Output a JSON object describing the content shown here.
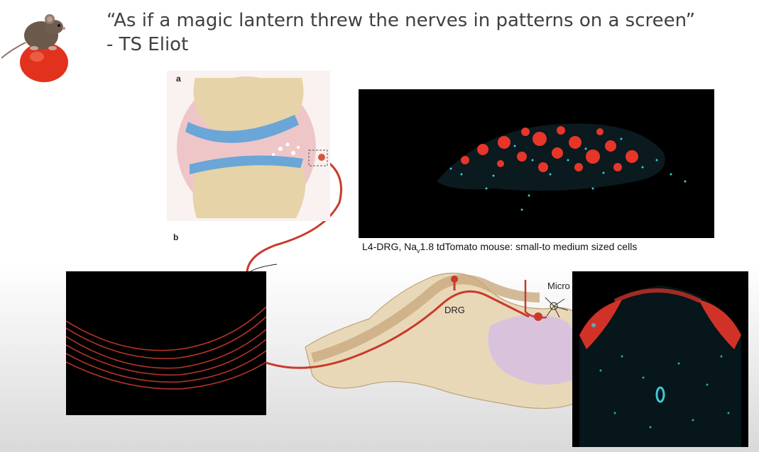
{
  "slide": {
    "quote": "“As if a magic lantern threw the nerves in patterns on a screen”",
    "attribution": "- TS Eliot"
  },
  "figure": {
    "panel_a_label": "a",
    "panel_b_label": "b",
    "drg_label": "DRG",
    "microglia_label": "Micro",
    "drg_caption_prefix": "L4-DRG, Na",
    "drg_caption_sub": "v",
    "drg_caption_suffix": "1.8 tdTomato mouse: small-to medium sized cells"
  },
  "colors": {
    "tdtomato_red": "#e8352a",
    "nuclei_cyan": "#3ec9d6",
    "nerve_red": "#c93a2c",
    "cartilage_blue": "#6aa6d8",
    "bone_beige": "#e6d3a8",
    "synovium_pink": "#e7a9ad",
    "dorsal_horn_purple": "#c9b0dc"
  },
  "icons": {
    "logo": "mouse-on-tomato-icon"
  }
}
